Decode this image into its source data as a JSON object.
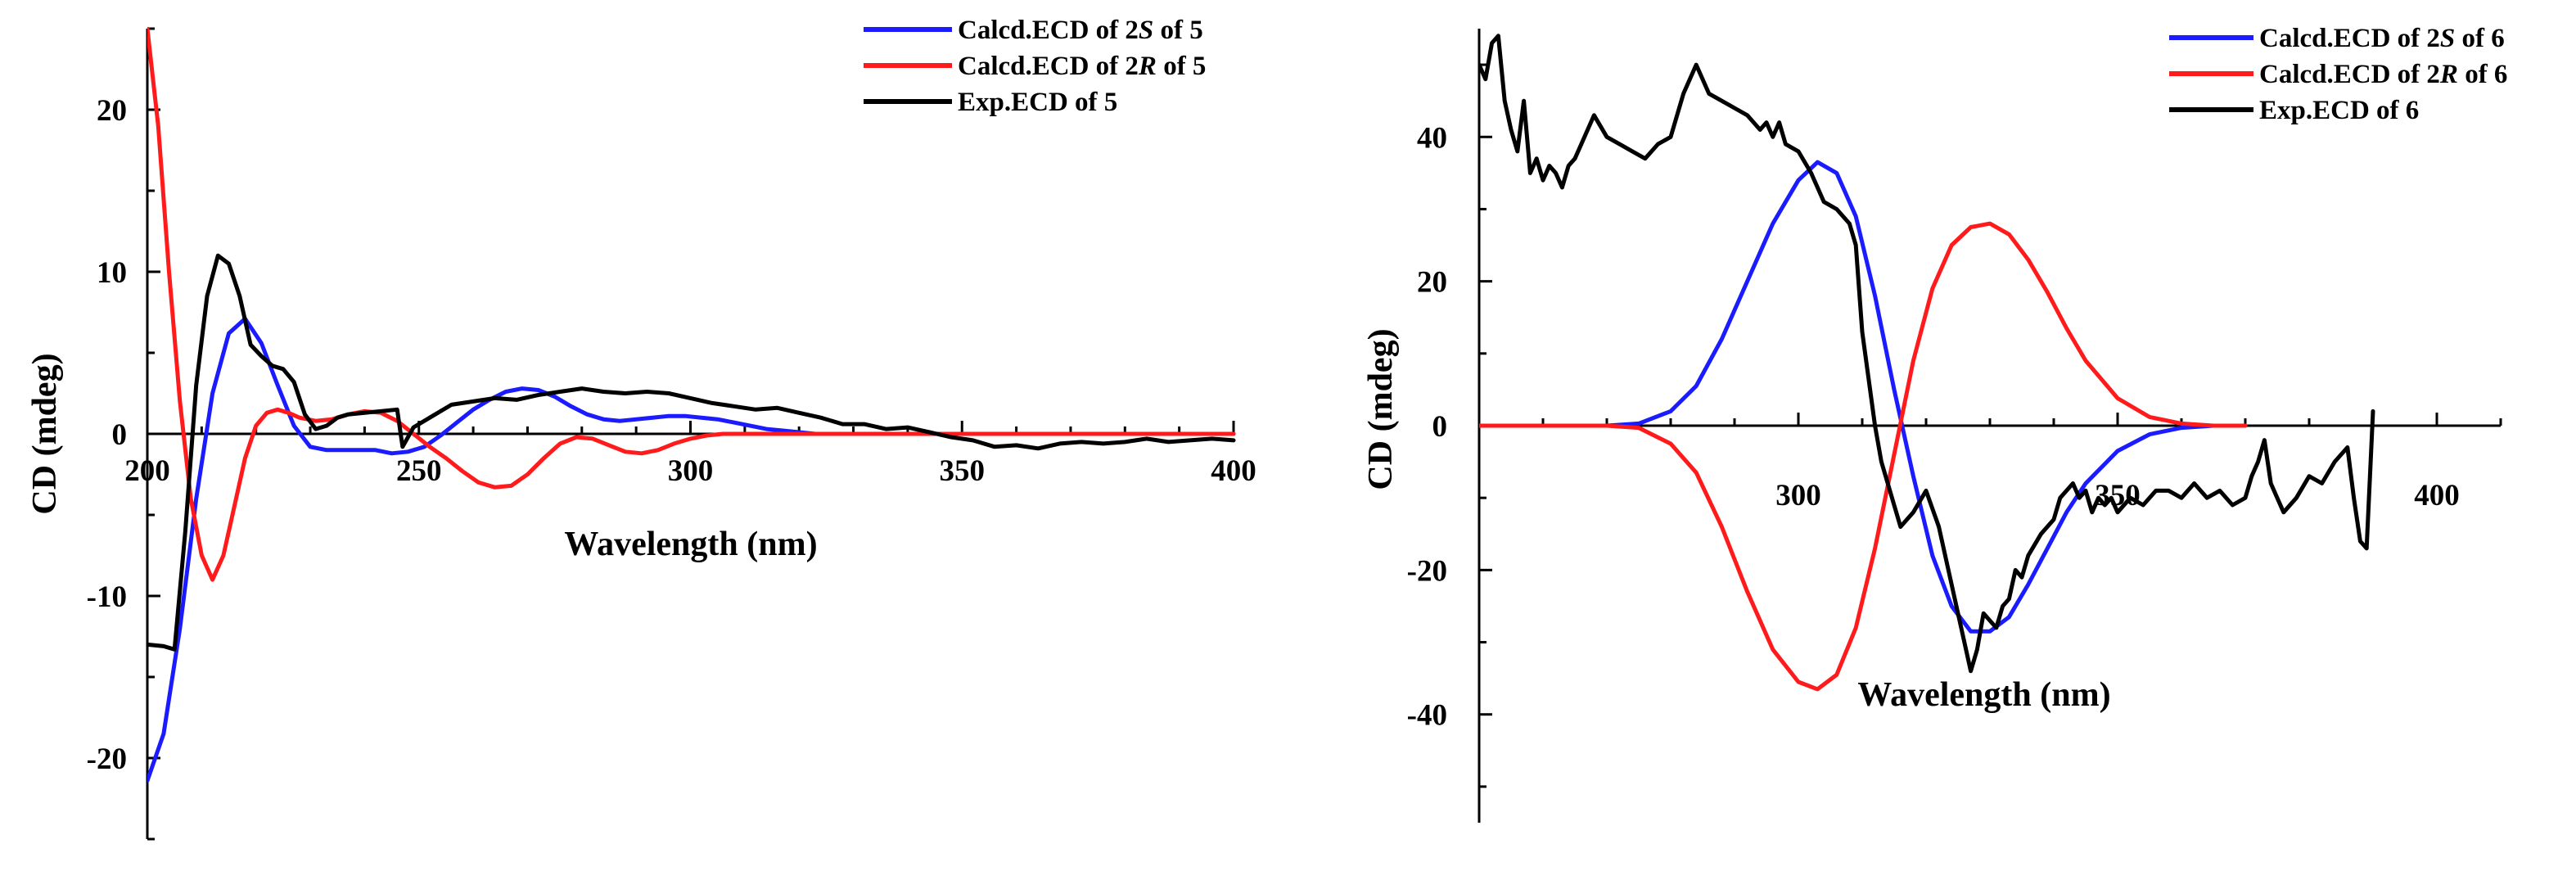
{
  "colors": {
    "blue": "#1b1bff",
    "red": "#ff1b1b",
    "black": "#000000"
  },
  "chart_data": [
    {
      "type": "line",
      "xlabel": "Wavelength (nm)",
      "ylabel": "CD (mdeg)",
      "xlim": [
        200,
        400
      ],
      "ylim": [
        -25,
        25
      ],
      "xticks": [
        "200",
        "250",
        "300",
        "350",
        "400"
      ],
      "yticks": [
        "20",
        "10",
        "0",
        "-10",
        "-20"
      ],
      "legend_position": "top-right",
      "series": [
        {
          "name": "Calcd.ECD of 2S of 5",
          "name_prefix": "Calcd.ECD of 2",
          "name_italic": "S",
          "name_suffix": " of 5",
          "color": "#1b1bff",
          "x": [
            200,
            203,
            206,
            209,
            212,
            215,
            218,
            221,
            224,
            227,
            230,
            233,
            236,
            239,
            242,
            245,
            248,
            251,
            254,
            257,
            260,
            263,
            266,
            269,
            272,
            275,
            278,
            281,
            284,
            287,
            290,
            293,
            296,
            299,
            302,
            305,
            308,
            311,
            314,
            317,
            320,
            323,
            326,
            330,
            340,
            350,
            360,
            380,
            400
          ],
          "y": [
            -21.4,
            -18.5,
            -12,
            -4,
            2.5,
            6.2,
            7.1,
            5.6,
            3,
            0.5,
            -0.8,
            -1,
            -1,
            -1,
            -1,
            -1.2,
            -1.1,
            -0.8,
            -0.1,
            0.7,
            1.5,
            2.1,
            2.6,
            2.8,
            2.7,
            2.3,
            1.7,
            1.2,
            0.9,
            0.8,
            0.9,
            1,
            1.1,
            1.1,
            1,
            0.9,
            0.7,
            0.5,
            0.3,
            0.2,
            0.1,
            0,
            0,
            0,
            0,
            0,
            0,
            0,
            0
          ]
        },
        {
          "name": "Calcd.ECD of 2R of 5",
          "name_prefix": "Calcd.ECD of 2",
          "name_italic": "R",
          "name_suffix": " of 5",
          "color": "#ff1b1b",
          "x": [
            200,
            202,
            204,
            206,
            208,
            210,
            212,
            214,
            216,
            218,
            220,
            222,
            224,
            226,
            228,
            231,
            234,
            237,
            240,
            243,
            246,
            249,
            252,
            255,
            258,
            261,
            264,
            267,
            270,
            273,
            276,
            279,
            282,
            285,
            288,
            291,
            294,
            297,
            300,
            303,
            306,
            309,
            312,
            315,
            318,
            322,
            330,
            340,
            360,
            380,
            400
          ],
          "y": [
            25,
            19,
            10,
            2,
            -4,
            -7.5,
            -9,
            -7.5,
            -4.5,
            -1.5,
            0.5,
            1.3,
            1.5,
            1.3,
            1,
            0.8,
            0.9,
            1.2,
            1.4,
            1.3,
            0.8,
            0,
            -0.8,
            -1.5,
            -2.3,
            -3,
            -3.3,
            -3.2,
            -2.5,
            -1.5,
            -0.6,
            -0.2,
            -0.3,
            -0.7,
            -1.1,
            -1.2,
            -1,
            -0.6,
            -0.3,
            -0.1,
            0,
            0,
            0,
            0,
            0,
            0,
            0,
            0,
            0,
            0,
            0
          ]
        },
        {
          "name": "Exp.ECD of 5",
          "color": "#000000",
          "x": [
            200,
            203,
            205,
            207,
            209,
            211,
            213,
            215,
            217,
            219,
            221,
            223,
            225,
            227,
            229,
            231,
            233,
            235,
            237,
            240,
            243,
            246,
            247,
            249,
            252,
            256,
            260,
            264,
            268,
            272,
            276,
            280,
            284,
            288,
            292,
            296,
            300,
            304,
            308,
            312,
            316,
            320,
            324,
            328,
            332,
            336,
            340,
            344,
            348,
            352,
            356,
            360,
            364,
            368,
            372,
            376,
            380,
            384,
            388,
            392,
            396,
            400
          ],
          "y": [
            -13,
            -13.1,
            -13.3,
            -6,
            3,
            8.5,
            11,
            10.5,
            8.5,
            5.5,
            4.8,
            4.2,
            4,
            3.2,
            1.2,
            0.3,
            0.5,
            1,
            1.2,
            1.3,
            1.4,
            1.5,
            -0.8,
            0.4,
            1,
            1.8,
            2,
            2.2,
            2.1,
            2.4,
            2.6,
            2.8,
            2.6,
            2.5,
            2.6,
            2.5,
            2.2,
            1.9,
            1.7,
            1.5,
            1.6,
            1.3,
            1,
            0.6,
            0.6,
            0.3,
            0.4,
            0.1,
            -0.2,
            -0.4,
            -0.8,
            -0.7,
            -0.9,
            -0.6,
            -0.5,
            -0.6,
            -0.5,
            -0.3,
            -0.5,
            -0.4,
            -0.3,
            -0.4
          ]
        }
      ]
    },
    {
      "type": "line",
      "xlabel": "Wavelength (nm)",
      "ylabel": "CD (mdeg)",
      "xlim": [
        250,
        410
      ],
      "ylim": [
        -55,
        55
      ],
      "xticks": [
        "300",
        "350",
        "400"
      ],
      "yticks": [
        "40",
        "20",
        "0",
        "-20",
        "-40"
      ],
      "legend_position": "top-right",
      "series": [
        {
          "name": "Calcd.ECD of 2S of 6",
          "name_prefix": "Calcd.ECD of 2",
          "name_italic": "S",
          "name_suffix": " of 6",
          "color": "#1b1bff",
          "x": [
            250,
            260,
            270,
            275,
            280,
            284,
            288,
            292,
            296,
            300,
            303,
            306,
            309,
            312,
            315,
            318,
            321,
            324,
            327,
            330,
            333,
            336,
            339,
            342,
            345,
            350,
            355,
            360,
            365,
            370
          ],
          "y": [
            0,
            0,
            0,
            0.3,
            2,
            5.5,
            12,
            20,
            28,
            34,
            36.5,
            35,
            29,
            18,
            5,
            -7,
            -18,
            -25,
            -28.5,
            -28.5,
            -26.5,
            -22,
            -17,
            -12,
            -8,
            -3.5,
            -1.2,
            -0.3,
            0,
            0
          ]
        },
        {
          "name": "Calcd.ECD of 2R of 6",
          "name_prefix": "Calcd.ECD of 2",
          "name_italic": "R",
          "name_suffix": " of 6",
          "color": "#ff1b1b",
          "x": [
            250,
            260,
            270,
            275,
            280,
            284,
            288,
            292,
            296,
            300,
            303,
            306,
            309,
            312,
            315,
            318,
            321,
            324,
            327,
            330,
            333,
            336,
            339,
            342,
            345,
            350,
            355,
            360,
            365,
            370
          ],
          "y": [
            0,
            0,
            0,
            -0.3,
            -2.5,
            -6.5,
            -14,
            -23,
            -31,
            -35.5,
            -36.5,
            -34.5,
            -28,
            -17,
            -4,
            9,
            19,
            25,
            27.5,
            28,
            26.5,
            23,
            18.5,
            13.5,
            9,
            3.8,
            1.2,
            0.3,
            0,
            0
          ]
        },
        {
          "name": "Exp.ECD of 6",
          "color": "#000000",
          "x": [
            250,
            251,
            252,
            253,
            254,
            255,
            256,
            257,
            258,
            259,
            260,
            261,
            262,
            263,
            264,
            265,
            266,
            268,
            270,
            272,
            274,
            276,
            278,
            280,
            282,
            284,
            286,
            288,
            290,
            292,
            293,
            294,
            295,
            296,
            297,
            298,
            300,
            302,
            304,
            306,
            308,
            309,
            310,
            312,
            313,
            314,
            316,
            318,
            320,
            322,
            324,
            325,
            326,
            327,
            328,
            329,
            330,
            331,
            332,
            333,
            334,
            335,
            336,
            338,
            340,
            341,
            342,
            343,
            344,
            345,
            346,
            347,
            348,
            349,
            350,
            352,
            354,
            356,
            358,
            360,
            362,
            364,
            366,
            368,
            370,
            371,
            372,
            373,
            374,
            375,
            376,
            378,
            380,
            382,
            384,
            386,
            387,
            388,
            389,
            390
          ],
          "y": [
            50,
            48,
            53,
            54,
            45,
            41,
            38,
            45,
            35,
            37,
            34,
            36,
            35,
            33,
            36,
            37,
            39,
            43,
            40,
            39,
            38,
            37,
            39,
            40,
            46,
            50,
            46,
            45,
            44,
            43,
            42,
            41,
            42,
            40,
            42,
            39,
            38,
            35,
            31,
            30,
            28,
            25,
            13,
            0,
            -5,
            -8,
            -14,
            -12,
            -9,
            -14,
            -22,
            -26,
            -30,
            -34,
            -31,
            -26,
            -27,
            -28,
            -25,
            -24,
            -20,
            -21,
            -18,
            -15,
            -13,
            -10,
            -9,
            -8,
            -10,
            -9,
            -12,
            -10,
            -11,
            -10,
            -12,
            -10,
            -11,
            -9,
            -9,
            -10,
            -8,
            -10,
            -9,
            -11,
            -10,
            -7,
            -5,
            -2,
            -8,
            -10,
            -12,
            -10,
            -7,
            -8,
            -5,
            -3,
            -10,
            -16,
            -17,
            2
          ]
        }
      ]
    }
  ]
}
